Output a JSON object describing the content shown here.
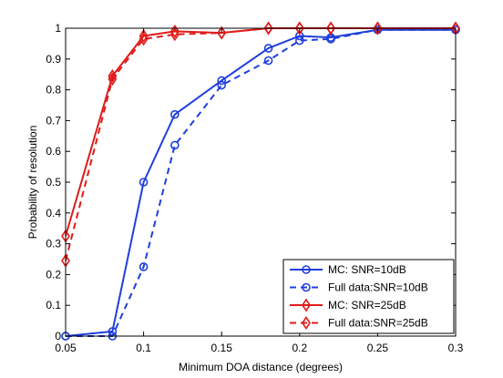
{
  "chart_data": {
    "type": "line",
    "title": "",
    "xlabel": "Minimum DOA distance (degrees)",
    "ylabel": "Probability of resolution",
    "xlim": [
      0.05,
      0.3
    ],
    "ylim": [
      0,
      1
    ],
    "xticks": [
      0.05,
      0.1,
      0.15,
      0.2,
      0.25,
      0.3
    ],
    "xtick_labels": [
      "0.05",
      "0.1",
      "0.15",
      "0.2",
      "0.25",
      "0.3"
    ],
    "yticks": [
      0,
      0.1,
      0.2,
      0.3,
      0.4,
      0.5,
      0.6,
      0.7,
      0.8,
      0.9,
      1
    ],
    "ytick_labels": [
      "0",
      "0.1",
      "0.2",
      "0.3",
      "0.4",
      "0.5",
      "0.6",
      "0.7",
      "0.8",
      "0.9",
      "1"
    ],
    "grid": false,
    "legend_position": "bottom-right",
    "x": [
      0.05,
      0.08,
      0.1,
      0.12,
      0.15,
      0.18,
      0.2,
      0.22,
      0.25,
      0.3
    ],
    "series": [
      {
        "name": "MC: SNR=10dB",
        "color": "#1f3fdc",
        "linestyle": "solid",
        "marker": "circle",
        "values": [
          0.0,
          0.015,
          0.5,
          0.72,
          0.83,
          0.935,
          0.975,
          0.97,
          0.995,
          0.995
        ]
      },
      {
        "name": "Full data:SNR=10dB",
        "color": "#1f3fdc",
        "linestyle": "dashed",
        "marker": "circle",
        "values": [
          0.0,
          0.0,
          0.225,
          0.62,
          0.815,
          0.895,
          0.96,
          0.965,
          0.995,
          0.995
        ]
      },
      {
        "name": "MC: SNR=25dB",
        "color": "#e01b1b",
        "linestyle": "solid",
        "marker": "diamond",
        "values": [
          0.325,
          0.845,
          0.975,
          0.99,
          0.985,
          1.0,
          1.0,
          1.0,
          1.0,
          1.0
        ]
      },
      {
        "name": "Full data:SNR=25dB",
        "color": "#e01b1b",
        "linestyle": "dashed",
        "marker": "diamond",
        "values": [
          0.245,
          0.835,
          0.965,
          0.98,
          0.985,
          1.0,
          1.0,
          1.0,
          1.0,
          1.0
        ]
      }
    ]
  }
}
